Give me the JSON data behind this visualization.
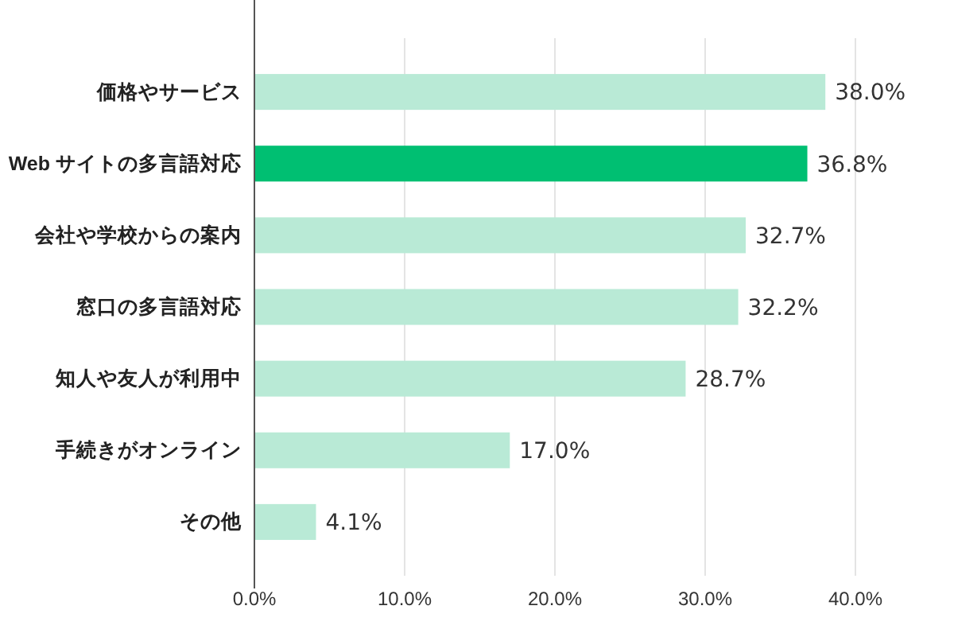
{
  "chart_data": {
    "type": "bar",
    "orientation": "horizontal",
    "categories": [
      "価格やサービス",
      "Web サイトの多言語対応",
      "会社や学校からの案内",
      "窓口の多言語対応",
      "知人や友人が利用中",
      "手続きがオンライン",
      "その他"
    ],
    "values": [
      38.0,
      36.8,
      32.7,
      32.2,
      28.7,
      17.0,
      4.1
    ],
    "value_labels": [
      "38.0%",
      "36.8%",
      "32.7%",
      "32.2%",
      "28.7%",
      "17.0%",
      "4.1%"
    ],
    "colors": [
      "#b9ead6",
      "#00bf72",
      "#b9ead6",
      "#b9ead6",
      "#b9ead6",
      "#b9ead6",
      "#b9ead6"
    ],
    "xlim": [
      0,
      40
    ],
    "xticks": [
      {
        "value": 0,
        "label": "0.0%"
      },
      {
        "value": 10,
        "label": "10.0%"
      },
      {
        "value": 20,
        "label": "20.0%"
      },
      {
        "value": 30,
        "label": "30.0%"
      },
      {
        "value": 40,
        "label": "40.0%"
      }
    ],
    "grid": "x"
  }
}
